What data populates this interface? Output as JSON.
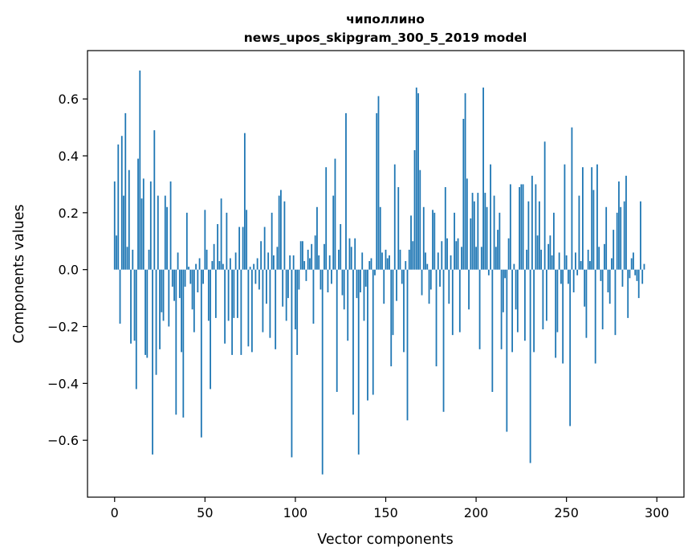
{
  "chart_data": {
    "type": "bar",
    "title": "чиполлино",
    "subtitle": "news_upos_skipgram_300_5_2019 model",
    "xlabel": "Vector components",
    "ylabel": "Components values",
    "xlim": [
      -15,
      315
    ],
    "ylim": [
      -0.8,
      0.77
    ],
    "xticks": [
      0,
      50,
      100,
      150,
      200,
      250,
      300
    ],
    "xtick_labels": [
      "0",
      "50",
      "100",
      "150",
      "200",
      "250",
      "300"
    ],
    "yticks": [
      -0.6,
      -0.4,
      -0.2,
      0.0,
      0.2,
      0.4,
      0.6
    ],
    "ytick_labels": [
      "−0.6",
      "−0.4",
      "−0.2",
      "0.0",
      "0.2",
      "0.4",
      "0.6"
    ],
    "grid": false,
    "bar_color": "#1f77b4",
    "x_start": 0,
    "values": [
      0.31,
      0.12,
      0.44,
      -0.19,
      0.47,
      0.26,
      0.55,
      0.08,
      0.35,
      -0.26,
      0.07,
      -0.25,
      -0.42,
      0.39,
      0.7,
      0.25,
      0.32,
      -0.3,
      -0.31,
      0.07,
      0.31,
      -0.65,
      0.49,
      -0.37,
      0.26,
      -0.28,
      -0.15,
      -0.18,
      0.26,
      0.22,
      -0.2,
      0.31,
      -0.06,
      -0.11,
      -0.51,
      0.06,
      -0.1,
      -0.29,
      -0.52,
      -0.06,
      0.2,
      0.01,
      -0.05,
      -0.14,
      -0.22,
      0.02,
      -0.08,
      0.04,
      -0.59,
      -0.05,
      0.21,
      0.07,
      -0.18,
      -0.42,
      0.03,
      0.09,
      -0.17,
      0.16,
      0.03,
      0.25,
      0.02,
      -0.26,
      0.2,
      -0.18,
      0.04,
      -0.3,
      -0.17,
      0.06,
      -0.17,
      0.15,
      -0.3,
      0.15,
      0.48,
      0.21,
      -0.27,
      0.01,
      -0.29,
      0.02,
      -0.05,
      0.04,
      -0.07,
      0.1,
      -0.22,
      0.15,
      -0.12,
      0.06,
      -0.24,
      0.2,
      0.05,
      -0.28,
      0.08,
      0.26,
      0.28,
      -0.13,
      0.24,
      -0.18,
      -0.1,
      0.05,
      -0.66,
      0.05,
      -0.21,
      -0.3,
      -0.07,
      0.1,
      0.1,
      0.03,
      -0.04,
      0.07,
      0.04,
      0.09,
      -0.19,
      0.12,
      0.22,
      0.05,
      -0.07,
      -0.72,
      0.09,
      0.36,
      -0.08,
      0.05,
      -0.05,
      0.26,
      0.39,
      -0.43,
      0.07,
      0.16,
      -0.09,
      -0.14,
      0.55,
      -0.25,
      0.11,
      0.08,
      -0.51,
      0.11,
      -0.1,
      -0.65,
      -0.08,
      0.06,
      -0.18,
      -0.06,
      -0.46,
      0.03,
      0.04,
      -0.44,
      -0.02,
      0.55,
      0.61,
      0.22,
      0.06,
      -0.12,
      0.07,
      0.04,
      0.05,
      -0.34,
      -0.23,
      0.37,
      -0.11,
      0.29,
      0.07,
      -0.05,
      -0.29,
      0.03,
      -0.53,
      0.07,
      0.19,
      0.1,
      0.42,
      0.64,
      0.62,
      0.35,
      -0.09,
      0.22,
      0.06,
      0.02,
      -0.12,
      -0.07,
      0.21,
      0.2,
      -0.34,
      0.06,
      -0.06,
      0.1,
      -0.5,
      0.29,
      0.11,
      -0.12,
      0.05,
      -0.23,
      0.2,
      0.1,
      0.11,
      -0.22,
      0.08,
      0.53,
      0.62,
      0.32,
      -0.14,
      0.18,
      0.27,
      0.24,
      0.08,
      0.27,
      -0.28,
      0.08,
      0.64,
      0.27,
      0.22,
      -0.02,
      0.37,
      -0.43,
      0.26,
      0.08,
      0.14,
      0.2,
      -0.28,
      -0.15,
      -0.03,
      -0.57,
      0.11,
      0.3,
      -0.29,
      0.02,
      -0.14,
      -0.22,
      0.29,
      0.3,
      0.3,
      -0.25,
      0.07,
      0.24,
      -0.68,
      0.33,
      -0.29,
      0.3,
      0.12,
      0.24,
      0.07,
      -0.21,
      0.45,
      -0.18,
      0.09,
      0.12,
      0.05,
      0.2,
      -0.31,
      -0.22,
      0.06,
      -0.05,
      -0.33,
      0.37,
      0.05,
      -0.05,
      -0.55,
      0.5,
      -0.08,
      0.06,
      -0.02,
      0.26,
      0.03,
      0.36,
      -0.13,
      -0.24,
      0.07,
      0.03,
      0.36,
      0.28,
      -0.33,
      0.37,
      0.08,
      -0.04,
      -0.21,
      0.09,
      0.22,
      -0.08,
      -0.12,
      0.04,
      0.14,
      -0.23,
      0.2,
      0.31,
      0.22,
      -0.06,
      0.24,
      0.33,
      -0.17,
      -0.03,
      0.04,
      0.06,
      -0.02,
      -0.04,
      -0.1,
      0.24,
      -0.05,
      0.02
    ]
  }
}
